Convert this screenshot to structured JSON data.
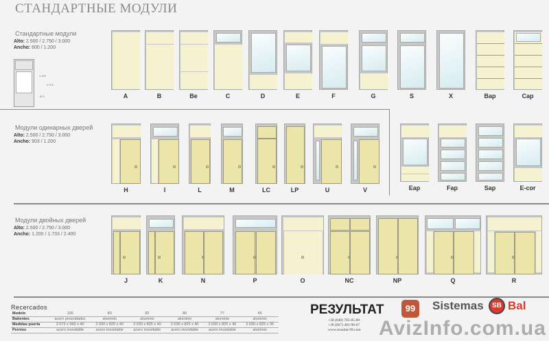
{
  "title": "СТАНДАРТНЫЕ МОДУЛИ",
  "sections": [
    {
      "heading": "Стандартные модули",
      "alto_label": "Alto:",
      "alto": "2.500 / 2.750 / 3.000",
      "ancho_label": "Ancho:",
      "ancho": "600 / 1.200",
      "diagram_labels": [
        "1.200",
        "2.070",
        "870"
      ]
    },
    {
      "heading": "Модули одинарных дверей",
      "alto_label": "Alto:",
      "alto": "2.500 / 2.750 / 3.000",
      "ancho_label": "Ancho:",
      "ancho": "903 / 1.200"
    },
    {
      "heading": "Модули двойных дверей",
      "alto_label": "Alto:",
      "alto": "2.500 / 2.750 / 3.000",
      "ancho_label": "Ancho:",
      "ancho": "1.200 / 1.733 / 2.400"
    }
  ],
  "modules": {
    "standard": [
      "A",
      "B",
      "Be",
      "C",
      "D",
      "E",
      "F",
      "G",
      "S",
      "X",
      "Bap",
      "Cap"
    ],
    "single": [
      "H",
      "I",
      "L",
      "M",
      "LC",
      "LP",
      "U",
      "V"
    ],
    "panels": [
      "Eap",
      "Fap",
      "Sap",
      "E-cor"
    ],
    "double": [
      "J",
      "K",
      "N",
      "P",
      "O",
      "NC",
      "NP",
      "Q",
      "R"
    ]
  },
  "recercados": {
    "title": "Recercados",
    "rows": [
      [
        "Modelo",
        "105",
        "83",
        "82",
        "80",
        "77",
        "45"
      ],
      [
        "Batientes",
        "acero presoldados",
        "aluminio",
        "aluminio",
        "aluminio",
        "aluminio",
        "aluminio"
      ],
      [
        "Medidas puerta",
        "2.073 x 960 x 40",
        "2.030 x 825 x 40",
        "2.030 x 825 x 40",
        "2.030 x 825 x 40",
        "2.030 x 825 x 40",
        "2.030 x 825 x 35"
      ],
      [
        "Pernios",
        "acero inoxidable",
        "acero inoxidable",
        "acero inoxidable",
        "acero inoxidable",
        "acero inoxidable",
        "aluminio"
      ]
    ]
  },
  "brand": {
    "name": "РЕЗУЛЬТАТ",
    "badge": "99",
    "phones": [
      "+38 (048) 785-85-80",
      "+38 (067) 483-98-67"
    ],
    "site": "www.rezultat-99.com"
  },
  "partner": {
    "name": "Sistemas",
    "badge": "SB",
    "name2": "Bal"
  },
  "watermark": "AvizInfo.com.ua",
  "colors": {
    "panel": "#f6f2cf",
    "door": "#ece5a9",
    "glass": "#d6ecf1",
    "frame": "#c7c7c5"
  }
}
